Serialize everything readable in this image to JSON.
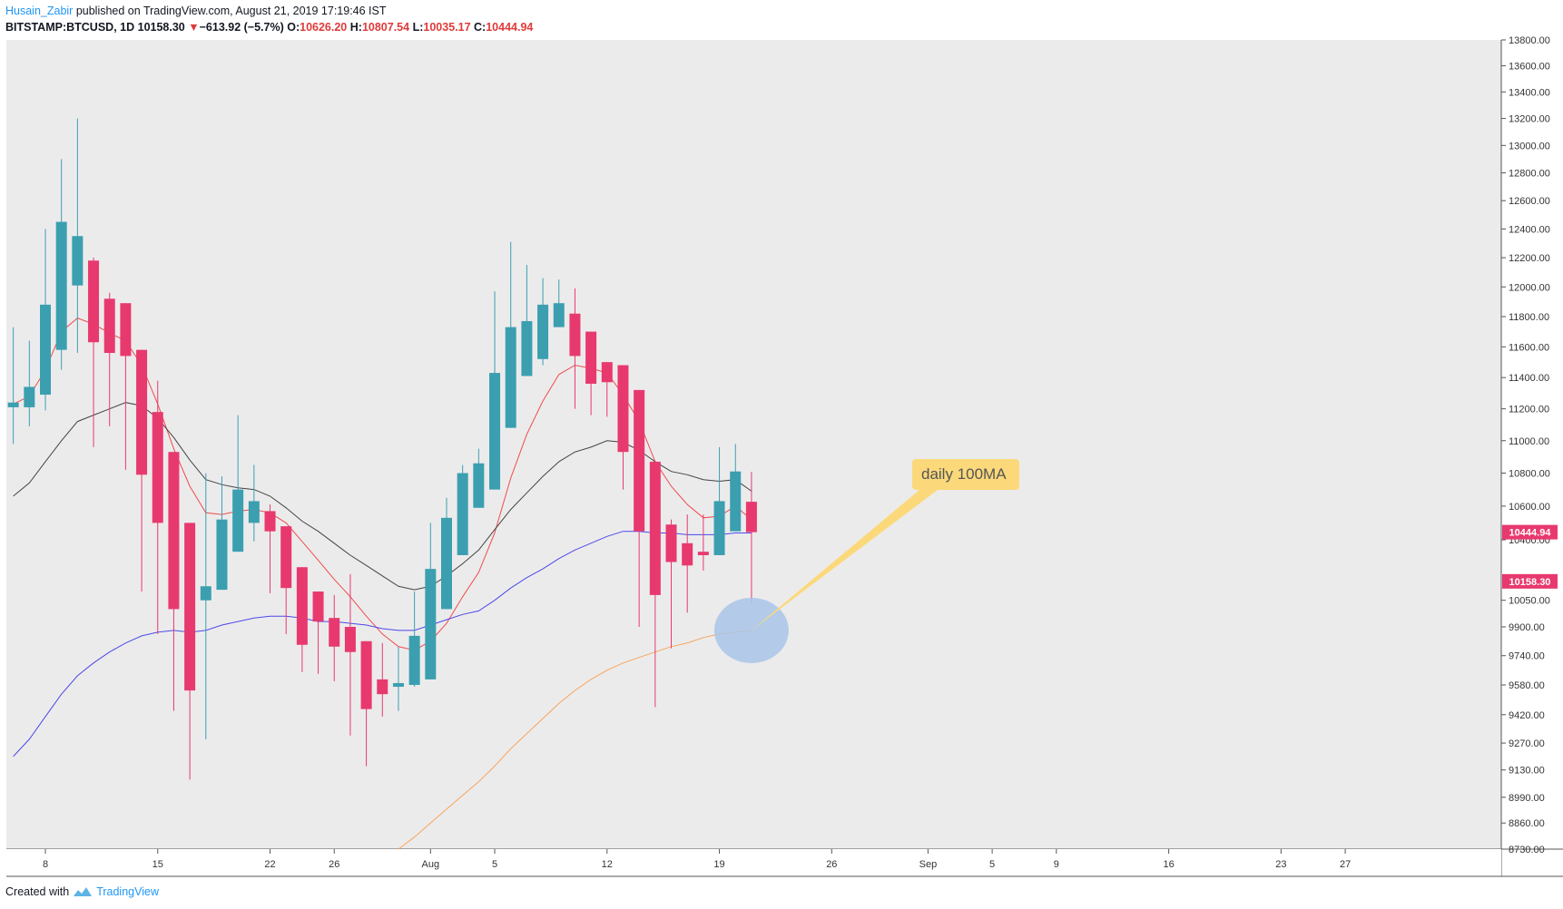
{
  "header": {
    "author": "Husain_Zabir",
    "published": " published on TradingView.com, August 21, 2019 17:19:46 IST",
    "symbol": "BITSTAMP:BTCUSD, 1D",
    "last": "10158.30",
    "arrow": "▼",
    "change": "−613.92 (−5.7%)",
    "o_label": "O:",
    "o_value": "10626.20",
    "h_label": "H:",
    "h_value": "10807.54",
    "l_label": "L:",
    "l_value": "10035.17",
    "c_label": "C:",
    "c_value": "10444.94"
  },
  "footer": {
    "created_with": "Created with",
    "brand": "TradingView"
  },
  "colors": {
    "background": "#ecebec",
    "up": "#3b9fb0",
    "down": "#e8396e",
    "ma_red": "#ef4b4b",
    "ma_black": "#444444",
    "ma_blue": "#4a4ae8",
    "ma_orange": "#f7a55b",
    "callout": "#fbd97a",
    "highlight": "#a9c6e8"
  },
  "chart_data": {
    "type": "candlestick",
    "y_scale": "log",
    "ylim": [
      8730,
      13800
    ],
    "y_ticks": [
      "13800.00",
      "13600.00",
      "13400.00",
      "13200.00",
      "13000.00",
      "12800.00",
      "12600.00",
      "12400.00",
      "12200.00",
      "12000.00",
      "11800.00",
      "11600.00",
      "11400.00",
      "11200.00",
      "11000.00",
      "10800.00",
      "10600.00",
      "10400.00",
      "10050.00",
      "9900.00",
      "9740.00",
      "9580.00",
      "9420.00",
      "9270.00",
      "9130.00",
      "8990.00",
      "8860.00",
      "8730.00"
    ],
    "x_ticks": [
      {
        "label": "8",
        "day": 8
      },
      {
        "label": "15",
        "day": 15
      },
      {
        "label": "22",
        "day": 22
      },
      {
        "label": "26",
        "day": 26
      },
      {
        "label": "Aug",
        "day": 32
      },
      {
        "label": "5",
        "day": 36
      },
      {
        "label": "12",
        "day": 43
      },
      {
        "label": "19",
        "day": 50
      },
      {
        "label": "26",
        "day": 57
      },
      {
        "label": "Sep",
        "day": 63
      },
      {
        "label": "5",
        "day": 67
      },
      {
        "label": "9",
        "day": 71
      },
      {
        "label": "16",
        "day": 78
      },
      {
        "label": "23",
        "day": 85
      },
      {
        "label": "27",
        "day": 89
      }
    ],
    "price_labels": [
      {
        "value": 10444.94,
        "text": "10444.94",
        "color": "#e8396e"
      },
      {
        "value": 10158.3,
        "text": "10158.30",
        "color": "#e8396e"
      }
    ],
    "annotation": {
      "text": "daily 100MA",
      "at_day": 52,
      "at_price": 9880
    },
    "candles": [
      {
        "d": 6,
        "o": 11210,
        "h": 11730,
        "l": 10980,
        "c": 11240
      },
      {
        "d": 7,
        "o": 11210,
        "h": 11640,
        "l": 11090,
        "c": 11340
      },
      {
        "d": 8,
        "o": 11290,
        "h": 12400,
        "l": 11190,
        "c": 11880
      },
      {
        "d": 9,
        "o": 11580,
        "h": 12900,
        "l": 11450,
        "c": 12450
      },
      {
        "d": 10,
        "o": 12010,
        "h": 13200,
        "l": 11560,
        "c": 12350
      },
      {
        "d": 11,
        "o": 12180,
        "h": 12200,
        "l": 10960,
        "c": 11630
      },
      {
        "d": 12,
        "o": 11920,
        "h": 11960,
        "l": 11090,
        "c": 11560
      },
      {
        "d": 13,
        "o": 11890,
        "h": 11890,
        "l": 10820,
        "c": 11540
      },
      {
        "d": 14,
        "o": 11580,
        "h": 11580,
        "l": 10100,
        "c": 10790
      },
      {
        "d": 15,
        "o": 11180,
        "h": 11380,
        "l": 9860,
        "c": 10500
      },
      {
        "d": 16,
        "o": 10930,
        "h": 10930,
        "l": 9440,
        "c": 10000
      },
      {
        "d": 17,
        "o": 10500,
        "h": 10500,
        "l": 9080,
        "c": 9550
      },
      {
        "d": 18,
        "o": 10050,
        "h": 10800,
        "l": 9290,
        "c": 10130
      },
      {
        "d": 19,
        "o": 10110,
        "h": 10780,
        "l": 10110,
        "c": 10520
      },
      {
        "d": 20,
        "o": 10330,
        "h": 11160,
        "l": 10330,
        "c": 10700
      },
      {
        "d": 21,
        "o": 10500,
        "h": 10850,
        "l": 10390,
        "c": 10630
      },
      {
        "d": 22,
        "o": 10570,
        "h": 10610,
        "l": 10090,
        "c": 10450
      },
      {
        "d": 23,
        "o": 10480,
        "h": 10480,
        "l": 9860,
        "c": 10120
      },
      {
        "d": 24,
        "o": 10240,
        "h": 10240,
        "l": 9650,
        "c": 9800
      },
      {
        "d": 25,
        "o": 10100,
        "h": 10100,
        "l": 9640,
        "c": 9930
      },
      {
        "d": 26,
        "o": 9950,
        "h": 10080,
        "l": 9600,
        "c": 9790
      },
      {
        "d": 27,
        "o": 9900,
        "h": 10200,
        "l": 9310,
        "c": 9760
      },
      {
        "d": 28,
        "o": 9820,
        "h": 9820,
        "l": 9150,
        "c": 9450
      },
      {
        "d": 29,
        "o": 9610,
        "h": 9810,
        "l": 9410,
        "c": 9530
      },
      {
        "d": 30,
        "o": 9570,
        "h": 9790,
        "l": 9440,
        "c": 9590
      },
      {
        "d": 31,
        "o": 9580,
        "h": 10100,
        "l": 9570,
        "c": 9850
      },
      {
        "d": 32,
        "o": 9610,
        "h": 10500,
        "l": 9610,
        "c": 10230
      },
      {
        "d": 33,
        "o": 10000,
        "h": 10650,
        "l": 10000,
        "c": 10530
      },
      {
        "d": 34,
        "o": 10310,
        "h": 10850,
        "l": 10310,
        "c": 10800
      },
      {
        "d": 35,
        "o": 10590,
        "h": 10950,
        "l": 10590,
        "c": 10860
      },
      {
        "d": 36,
        "o": 10700,
        "h": 11970,
        "l": 10700,
        "c": 11430
      },
      {
        "d": 37,
        "o": 11080,
        "h": 12310,
        "l": 11080,
        "c": 11730
      },
      {
        "d": 38,
        "o": 11410,
        "h": 12150,
        "l": 11410,
        "c": 11770
      },
      {
        "d": 39,
        "o": 11520,
        "h": 12060,
        "l": 11480,
        "c": 11880
      },
      {
        "d": 40,
        "o": 11730,
        "h": 12050,
        "l": 11730,
        "c": 11890
      },
      {
        "d": 41,
        "o": 11820,
        "h": 11990,
        "l": 11200,
        "c": 11540
      },
      {
        "d": 42,
        "o": 11700,
        "h": 11700,
        "l": 11160,
        "c": 11360
      },
      {
        "d": 43,
        "o": 11500,
        "h": 11500,
        "l": 11150,
        "c": 11370
      },
      {
        "d": 44,
        "o": 11480,
        "h": 11480,
        "l": 10700,
        "c": 10930
      },
      {
        "d": 45,
        "o": 11320,
        "h": 11320,
        "l": 9900,
        "c": 10450
      },
      {
        "d": 46,
        "o": 10870,
        "h": 10870,
        "l": 9460,
        "c": 10080
      },
      {
        "d": 47,
        "o": 10490,
        "h": 10520,
        "l": 9780,
        "c": 10270
      },
      {
        "d": 48,
        "o": 10380,
        "h": 10550,
        "l": 9980,
        "c": 10250
      },
      {
        "d": 49,
        "o": 10330,
        "h": 10550,
        "l": 10220,
        "c": 10310
      },
      {
        "d": 50,
        "o": 10310,
        "h": 10960,
        "l": 10310,
        "c": 10630
      },
      {
        "d": 51,
        "o": 10450,
        "h": 10980,
        "l": 10450,
        "c": 10810
      },
      {
        "d": 52,
        "o": 10626.2,
        "h": 10807.54,
        "l": 10035.17,
        "c": 10444.94
      }
    ],
    "series": [
      {
        "color": "#ef4b4b",
        "points": [
          [
            6,
            11230
          ],
          [
            7,
            11280
          ],
          [
            8,
            11450
          ],
          [
            9,
            11700
          ],
          [
            10,
            11790
          ],
          [
            11,
            11750
          ],
          [
            12,
            11690
          ],
          [
            13,
            11640
          ],
          [
            14,
            11480
          ],
          [
            15,
            11230
          ],
          [
            16,
            10950
          ],
          [
            17,
            10720
          ],
          [
            18,
            10560
          ],
          [
            19,
            10550
          ],
          [
            20,
            10570
          ],
          [
            21,
            10580
          ],
          [
            22,
            10560
          ],
          [
            23,
            10500
          ],
          [
            24,
            10390
          ],
          [
            25,
            10280
          ],
          [
            26,
            10170
          ],
          [
            27,
            10070
          ],
          [
            28,
            9960
          ],
          [
            29,
            9860
          ],
          [
            30,
            9790
          ],
          [
            31,
            9770
          ],
          [
            32,
            9820
          ],
          [
            33,
            9920
          ],
          [
            34,
            10070
          ],
          [
            35,
            10210
          ],
          [
            36,
            10440
          ],
          [
            37,
            10770
          ],
          [
            38,
            11040
          ],
          [
            39,
            11250
          ],
          [
            40,
            11420
          ],
          [
            41,
            11480
          ],
          [
            42,
            11460
          ],
          [
            43,
            11430
          ],
          [
            44,
            11290
          ],
          [
            45,
            11120
          ],
          [
            46,
            10870
          ],
          [
            47,
            10720
          ],
          [
            48,
            10610
          ],
          [
            49,
            10530
          ],
          [
            50,
            10540
          ],
          [
            51,
            10600
          ],
          [
            52,
            10520
          ]
        ]
      },
      {
        "color": "#444444",
        "points": [
          [
            6,
            10660
          ],
          [
            7,
            10740
          ],
          [
            8,
            10870
          ],
          [
            9,
            11000
          ],
          [
            10,
            11120
          ],
          [
            11,
            11160
          ],
          [
            12,
            11200
          ],
          [
            13,
            11240
          ],
          [
            14,
            11220
          ],
          [
            15,
            11140
          ],
          [
            16,
            11020
          ],
          [
            17,
            10880
          ],
          [
            18,
            10760
          ],
          [
            19,
            10730
          ],
          [
            20,
            10710
          ],
          [
            21,
            10700
          ],
          [
            22,
            10660
          ],
          [
            23,
            10590
          ],
          [
            24,
            10510
          ],
          [
            25,
            10450
          ],
          [
            26,
            10380
          ],
          [
            27,
            10310
          ],
          [
            28,
            10250
          ],
          [
            29,
            10190
          ],
          [
            30,
            10130
          ],
          [
            31,
            10110
          ],
          [
            32,
            10130
          ],
          [
            33,
            10190
          ],
          [
            34,
            10260
          ],
          [
            35,
            10340
          ],
          [
            36,
            10460
          ],
          [
            37,
            10580
          ],
          [
            38,
            10680
          ],
          [
            39,
            10780
          ],
          [
            40,
            10870
          ],
          [
            41,
            10930
          ],
          [
            42,
            10960
          ],
          [
            43,
            11000
          ],
          [
            44,
            10990
          ],
          [
            45,
            10940
          ],
          [
            46,
            10870
          ],
          [
            47,
            10810
          ],
          [
            48,
            10790
          ],
          [
            49,
            10760
          ],
          [
            50,
            10750
          ],
          [
            51,
            10760
          ],
          [
            52,
            10690
          ]
        ]
      },
      {
        "color": "#4a4ae8",
        "points": [
          [
            6,
            9200
          ],
          [
            7,
            9290
          ],
          [
            8,
            9410
          ],
          [
            9,
            9530
          ],
          [
            10,
            9630
          ],
          [
            11,
            9700
          ],
          [
            12,
            9760
          ],
          [
            13,
            9810
          ],
          [
            14,
            9850
          ],
          [
            15,
            9870
          ],
          [
            16,
            9880
          ],
          [
            17,
            9870
          ],
          [
            18,
            9880
          ],
          [
            19,
            9910
          ],
          [
            20,
            9930
          ],
          [
            21,
            9950
          ],
          [
            22,
            9960
          ],
          [
            23,
            9960
          ],
          [
            24,
            9950
          ],
          [
            25,
            9930
          ],
          [
            26,
            9930
          ],
          [
            27,
            9920
          ],
          [
            28,
            9910
          ],
          [
            29,
            9890
          ],
          [
            30,
            9880
          ],
          [
            31,
            9880
          ],
          [
            32,
            9910
          ],
          [
            33,
            9940
          ],
          [
            34,
            9970
          ],
          [
            35,
            9990
          ],
          [
            36,
            10050
          ],
          [
            37,
            10120
          ],
          [
            38,
            10180
          ],
          [
            39,
            10230
          ],
          [
            40,
            10290
          ],
          [
            41,
            10340
          ],
          [
            42,
            10380
          ],
          [
            43,
            10420
          ],
          [
            44,
            10450
          ],
          [
            45,
            10450
          ],
          [
            46,
            10440
          ],
          [
            47,
            10440
          ],
          [
            48,
            10430
          ],
          [
            49,
            10430
          ],
          [
            50,
            10430
          ],
          [
            51,
            10440
          ],
          [
            52,
            10440
          ]
        ]
      },
      {
        "color": "#f7a55b",
        "points": [
          [
            30,
            8730
          ],
          [
            31,
            8790
          ],
          [
            32,
            8860
          ],
          [
            33,
            8930
          ],
          [
            34,
            9000
          ],
          [
            35,
            9070
          ],
          [
            36,
            9150
          ],
          [
            37,
            9240
          ],
          [
            38,
            9320
          ],
          [
            39,
            9400
          ],
          [
            40,
            9480
          ],
          [
            41,
            9550
          ],
          [
            42,
            9610
          ],
          [
            43,
            9660
          ],
          [
            44,
            9700
          ],
          [
            45,
            9730
          ],
          [
            46,
            9760
          ],
          [
            47,
            9790
          ],
          [
            48,
            9810
          ],
          [
            49,
            9840
          ],
          [
            50,
            9860
          ],
          [
            51,
            9870
          ],
          [
            52,
            9880
          ]
        ]
      }
    ]
  }
}
